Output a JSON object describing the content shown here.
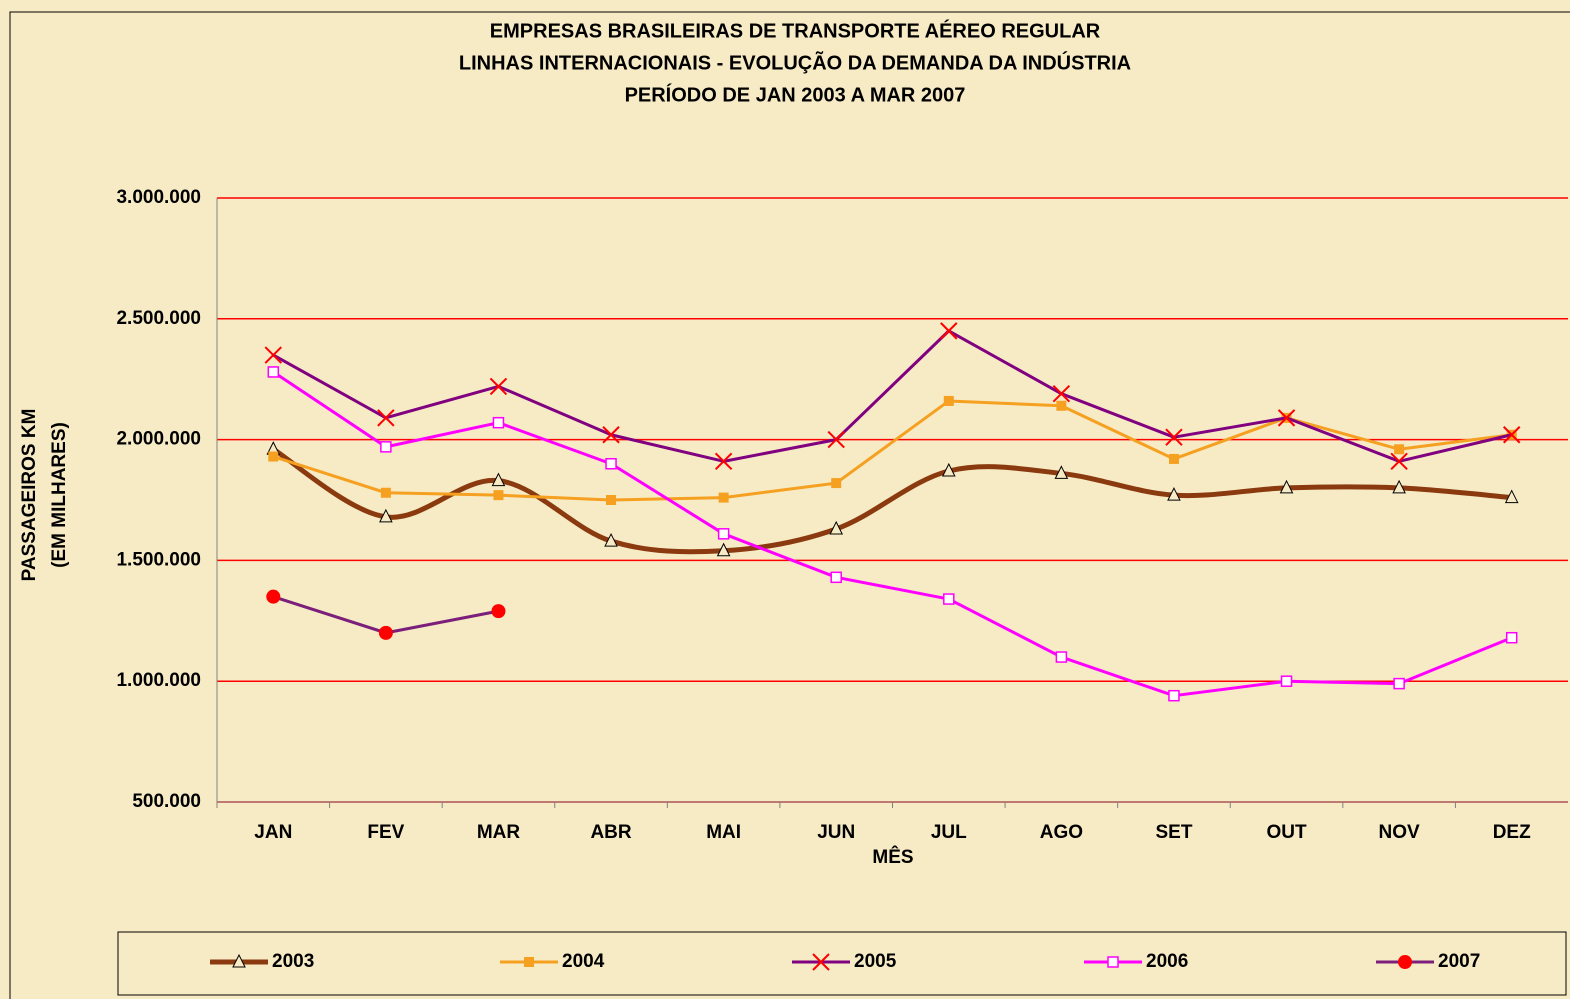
{
  "chart_data": {
    "type": "line",
    "title": [
      "EMPRESAS BRASILEIRAS DE TRANSPORTE AÉREO REGULAR",
      "LINHAS INTERNACIONAIS - EVOLUÇÃO DA DEMANDA DA INDÚSTRIA",
      "PERÍODO DE JAN 2003 A MAR 2007"
    ],
    "y_label": [
      "PASSAGEIROS KM",
      "(EM MILHARES)"
    ],
    "x_label": "MÊS",
    "categories": [
      "JAN",
      "FEV",
      "MAR",
      "ABR",
      "MAI",
      "JUN",
      "JUL",
      "AGO",
      "SET",
      "OUT",
      "NOV",
      "DEZ"
    ],
    "ylim": [
      500000,
      3000000
    ],
    "yticks": [
      {
        "value": 500000,
        "label": "500.000"
      },
      {
        "value": 1000000,
        "label": "1.000.000"
      },
      {
        "value": 1500000,
        "label": "1.500.000"
      },
      {
        "value": 2000000,
        "label": "2.000.000"
      },
      {
        "value": 2500000,
        "label": "2.500.000"
      },
      {
        "value": 3000000,
        "label": "3.000.000"
      }
    ],
    "grid": true,
    "series": [
      {
        "name": "2003",
        "color": "#8b3a0f",
        "marker": "triangle",
        "marker_color": "#8b3a0f",
        "smooth": true,
        "values": [
          1960000,
          1680000,
          1830000,
          1580000,
          1540000,
          1630000,
          1870000,
          1860000,
          1770000,
          1800000,
          1800000,
          1760000
        ]
      },
      {
        "name": "2004",
        "color": "#f5a020",
        "marker": "square",
        "marker_color": "#f5a020",
        "values": [
          1930000,
          1780000,
          1770000,
          1750000,
          1760000,
          1820000,
          2160000,
          2140000,
          1920000,
          2090000,
          1960000,
          2020000
        ]
      },
      {
        "name": "2005",
        "color": "#800080",
        "marker": "x",
        "marker_color": "#ff0000",
        "values": [
          2350000,
          2090000,
          2220000,
          2020000,
          1910000,
          2000000,
          2450000,
          2190000,
          2010000,
          2090000,
          1910000,
          2020000
        ]
      },
      {
        "name": "2006",
        "color": "#ff00ff",
        "marker": "hollow-square",
        "marker_color": "#ff00ff",
        "values": [
          2280000,
          1970000,
          2070000,
          1900000,
          1610000,
          1430000,
          1340000,
          1100000,
          940000,
          1000000,
          990000,
          1180000
        ]
      },
      {
        "name": "2007",
        "color": "#7b1f7b",
        "marker": "circle",
        "marker_color": "#ff0000",
        "values": [
          1350000,
          1200000,
          1290000,
          null,
          null,
          null,
          null,
          null,
          null,
          null,
          null,
          null
        ]
      }
    ]
  }
}
